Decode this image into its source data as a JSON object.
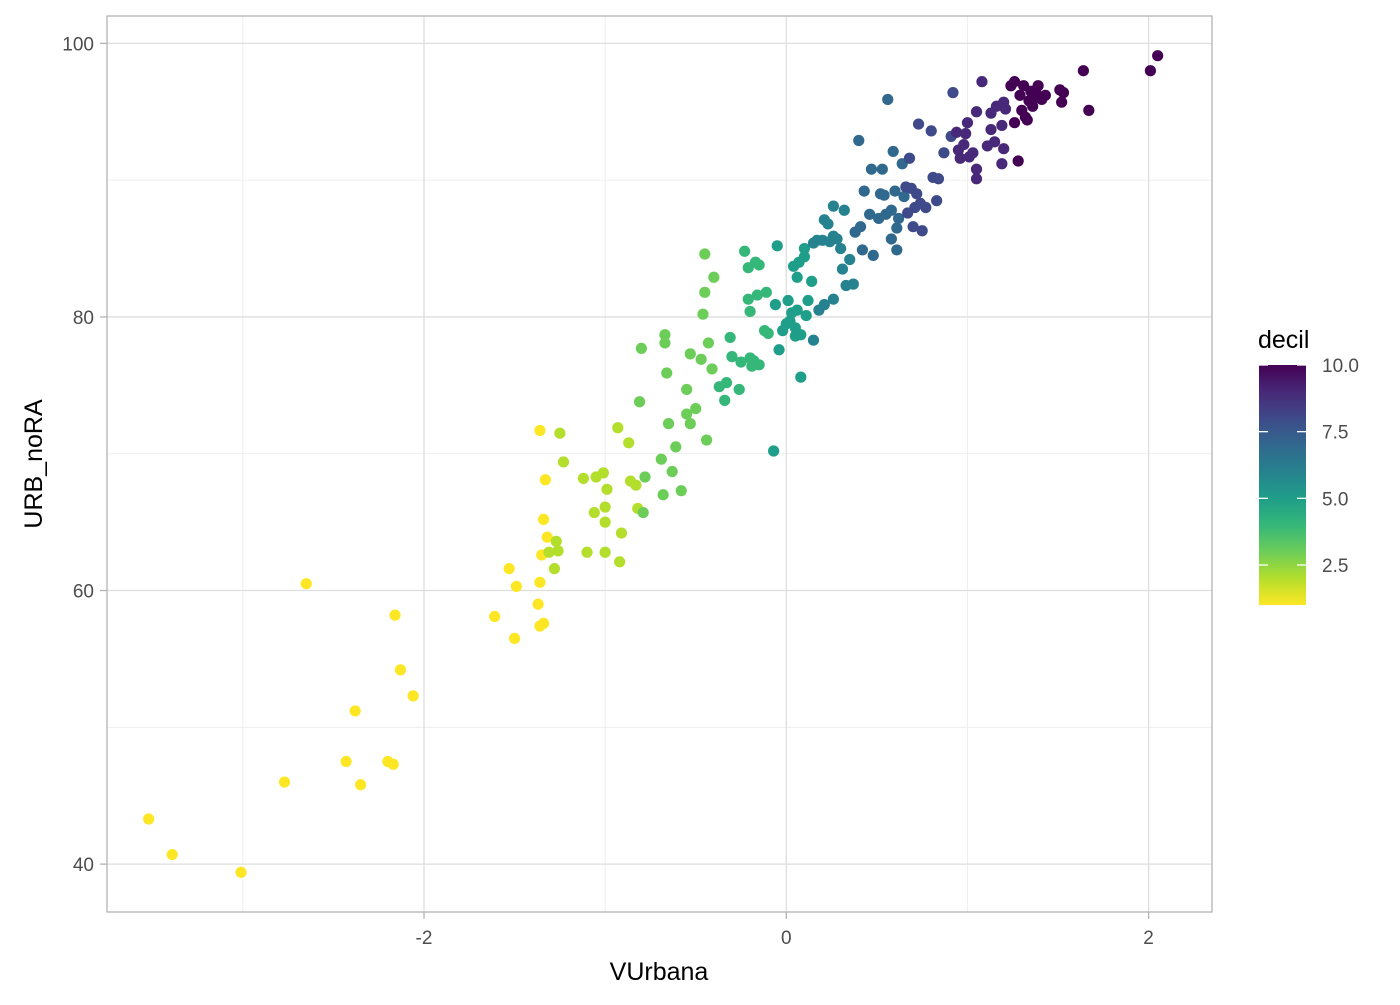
{
  "chart_data": {
    "type": "scatter",
    "xlabel": "VUrbana",
    "ylabel": "URB_noRA",
    "xlim": [
      -3.75,
      2.35
    ],
    "ylim": [
      36.5,
      102.0
    ],
    "x_ticks": [
      -2,
      0,
      2
    ],
    "x_tick_labels": [
      "-2",
      "0",
      "2"
    ],
    "x_minor_ticks": [
      -3,
      -1,
      1
    ],
    "y_ticks": [
      40,
      60,
      80,
      100
    ],
    "y_tick_labels": [
      "40",
      "60",
      "80",
      "100"
    ],
    "y_minor_ticks": [
      50,
      70,
      90
    ],
    "grid": true,
    "legend": {
      "title": "decil",
      "type": "colorbar",
      "placement": "right",
      "min": 1,
      "max": 10,
      "breaks": [
        10.0,
        7.5,
        5.0,
        2.5
      ],
      "break_labels": [
        "10.0",
        "7.5",
        "5.0",
        "2.5"
      ],
      "palette": [
        "#440154",
        "#482878",
        "#3E4A89",
        "#31688E",
        "#26828E",
        "#1F9E89",
        "#35B779",
        "#6DCD59",
        "#B4DE2C",
        "#FDE725"
      ]
    },
    "series": [
      {
        "columns": [
          "VUrbana",
          "URB_noRA",
          "decil"
        ],
        "points": [
          [
            -3.52,
            43.3,
            1
          ],
          [
            -3.39,
            40.7,
            1
          ],
          [
            -3.01,
            39.4,
            1
          ],
          [
            -2.77,
            46.0,
            1
          ],
          [
            -2.65,
            60.5,
            1
          ],
          [
            -2.43,
            47.5,
            1
          ],
          [
            -2.38,
            51.2,
            1
          ],
          [
            -2.35,
            45.8,
            1
          ],
          [
            -2.2,
            47.5,
            1
          ],
          [
            -2.17,
            47.3,
            1
          ],
          [
            -2.16,
            58.2,
            1
          ],
          [
            -2.13,
            54.2,
            1
          ],
          [
            -2.06,
            52.3,
            1
          ],
          [
            -1.61,
            58.1,
            1
          ],
          [
            -1.53,
            61.6,
            1
          ],
          [
            -1.49,
            60.3,
            1
          ],
          [
            -1.5,
            56.5,
            1
          ],
          [
            -1.37,
            59.0,
            1
          ],
          [
            -1.36,
            57.4,
            1
          ],
          [
            -1.34,
            57.6,
            1
          ],
          [
            -1.36,
            60.6,
            1
          ],
          [
            -1.35,
            62.6,
            1
          ],
          [
            -1.33,
            68.1,
            1
          ],
          [
            -1.32,
            63.9,
            1
          ],
          [
            -1.36,
            71.7,
            1
          ],
          [
            -1.34,
            65.2,
            1
          ],
          [
            -1.31,
            62.8,
            2
          ],
          [
            -1.27,
            63.6,
            2
          ],
          [
            -1.26,
            62.9,
            2
          ],
          [
            -1.25,
            71.5,
            2
          ],
          [
            -1.23,
            69.4,
            2
          ],
          [
            -1.28,
            61.6,
            2
          ],
          [
            -1.1,
            62.8,
            2
          ],
          [
            -1.12,
            68.2,
            2
          ],
          [
            -1.06,
            65.7,
            2
          ],
          [
            -1.05,
            68.3,
            2
          ],
          [
            -1.01,
            68.6,
            2
          ],
          [
            -1.0,
            66.1,
            2
          ],
          [
            -1.0,
            65.0,
            2
          ],
          [
            -0.99,
            67.4,
            2
          ],
          [
            -1.0,
            62.8,
            2
          ],
          [
            -0.93,
            71.9,
            2
          ],
          [
            -0.91,
            64.2,
            2
          ],
          [
            -0.92,
            62.1,
            2
          ],
          [
            -0.87,
            70.8,
            2
          ],
          [
            -0.86,
            68.0,
            2
          ],
          [
            -0.83,
            67.7,
            2
          ],
          [
            -0.82,
            66.0,
            2
          ],
          [
            -0.78,
            68.3,
            3
          ],
          [
            -0.79,
            65.7,
            3
          ],
          [
            -0.81,
            73.8,
            3
          ],
          [
            -0.8,
            77.7,
            3
          ],
          [
            -0.69,
            69.6,
            3
          ],
          [
            -0.68,
            67.0,
            3
          ],
          [
            -0.67,
            78.7,
            3
          ],
          [
            -0.67,
            78.1,
            3
          ],
          [
            -0.66,
            75.9,
            3
          ],
          [
            -0.65,
            72.2,
            3
          ],
          [
            -0.63,
            68.7,
            3
          ],
          [
            -0.61,
            70.5,
            3
          ],
          [
            -0.58,
            67.3,
            3
          ],
          [
            -0.55,
            72.9,
            3
          ],
          [
            -0.55,
            74.7,
            3
          ],
          [
            -0.53,
            72.2,
            3
          ],
          [
            -0.53,
            77.3,
            3
          ],
          [
            -0.5,
            73.3,
            3
          ],
          [
            -0.47,
            76.9,
            3
          ],
          [
            -0.46,
            80.2,
            3
          ],
          [
            -0.44,
            71.0,
            3
          ],
          [
            -0.45,
            81.8,
            3
          ],
          [
            -0.45,
            84.6,
            3
          ],
          [
            -0.43,
            78.1,
            3
          ],
          [
            -0.41,
            76.2,
            3
          ],
          [
            -0.4,
            82.9,
            3
          ],
          [
            -0.37,
            74.9,
            4
          ],
          [
            -0.34,
            73.9,
            4
          ],
          [
            -0.33,
            75.2,
            4
          ],
          [
            -0.31,
            78.5,
            4
          ],
          [
            -0.3,
            77.1,
            4
          ],
          [
            -0.26,
            74.7,
            4
          ],
          [
            -0.25,
            76.7,
            4
          ],
          [
            -0.23,
            84.8,
            4
          ],
          [
            -0.21,
            83.6,
            4
          ],
          [
            -0.21,
            81.3,
            4
          ],
          [
            -0.2,
            80.4,
            4
          ],
          [
            -0.2,
            77.0,
            4
          ],
          [
            -0.19,
            76.4,
            4
          ],
          [
            -0.18,
            76.8,
            4
          ],
          [
            -0.17,
            84.0,
            4
          ],
          [
            -0.16,
            81.6,
            4
          ],
          [
            -0.15,
            83.8,
            4
          ],
          [
            -0.15,
            76.5,
            4
          ],
          [
            -0.12,
            79.0,
            4
          ],
          [
            -0.11,
            81.8,
            4
          ],
          [
            -0.1,
            78.8,
            4
          ],
          [
            -0.07,
            70.2,
            5
          ],
          [
            -0.06,
            80.9,
            5
          ],
          [
            -0.05,
            85.2,
            5
          ],
          [
            -0.04,
            77.6,
            5
          ],
          [
            -0.02,
            79.0,
            5
          ],
          [
            0.0,
            79.5,
            5
          ],
          [
            0.01,
            81.2,
            5
          ],
          [
            0.02,
            79.7,
            5
          ],
          [
            0.03,
            80.3,
            5
          ],
          [
            0.04,
            83.7,
            5
          ],
          [
            0.05,
            79.2,
            5
          ],
          [
            0.05,
            78.6,
            5
          ],
          [
            0.06,
            80.5,
            5
          ],
          [
            0.06,
            82.9,
            5
          ],
          [
            0.07,
            84.0,
            5
          ],
          [
            0.08,
            75.6,
            5
          ],
          [
            0.08,
            78.7,
            5
          ],
          [
            0.1,
            84.4,
            5
          ],
          [
            0.1,
            85.0,
            5
          ],
          [
            0.11,
            80.1,
            5
          ],
          [
            0.12,
            81.2,
            5
          ],
          [
            0.14,
            82.6,
            5
          ],
          [
            0.15,
            85.4,
            6
          ],
          [
            0.15,
            78.3,
            6
          ],
          [
            0.17,
            85.6,
            6
          ],
          [
            0.18,
            80.5,
            6
          ],
          [
            0.2,
            85.6,
            6
          ],
          [
            0.21,
            80.9,
            6
          ],
          [
            0.21,
            87.1,
            6
          ],
          [
            0.23,
            86.8,
            6
          ],
          [
            0.24,
            85.5,
            6
          ],
          [
            0.26,
            81.3,
            6
          ],
          [
            0.26,
            85.9,
            6
          ],
          [
            0.26,
            88.1,
            6
          ],
          [
            0.28,
            85.7,
            6
          ],
          [
            0.3,
            85.0,
            6
          ],
          [
            0.31,
            83.5,
            6
          ],
          [
            0.32,
            87.8,
            6
          ],
          [
            0.33,
            82.3,
            6
          ],
          [
            0.35,
            84.2,
            6
          ],
          [
            0.37,
            82.4,
            6
          ],
          [
            0.38,
            86.2,
            7
          ],
          [
            0.4,
            92.9,
            7
          ],
          [
            0.41,
            86.6,
            7
          ],
          [
            0.42,
            84.9,
            7
          ],
          [
            0.43,
            89.2,
            7
          ],
          [
            0.46,
            87.5,
            7
          ],
          [
            0.47,
            90.8,
            7
          ],
          [
            0.48,
            84.5,
            7
          ],
          [
            0.51,
            87.2,
            7
          ],
          [
            0.52,
            89.0,
            7
          ],
          [
            0.53,
            90.8,
            7
          ],
          [
            0.54,
            88.9,
            7
          ],
          [
            0.55,
            87.5,
            7
          ],
          [
            0.56,
            95.9,
            7
          ],
          [
            0.58,
            85.7,
            7
          ],
          [
            0.58,
            87.8,
            7
          ],
          [
            0.59,
            92.1,
            7
          ],
          [
            0.6,
            89.2,
            7
          ],
          [
            0.61,
            86.5,
            7
          ],
          [
            0.61,
            84.9,
            7
          ],
          [
            0.62,
            87.2,
            7
          ],
          [
            0.64,
            91.2,
            7
          ],
          [
            0.65,
            88.8,
            7
          ],
          [
            0.66,
            89.5,
            8
          ],
          [
            0.67,
            87.6,
            8
          ],
          [
            0.68,
            91.6,
            8
          ],
          [
            0.69,
            89.4,
            8
          ],
          [
            0.7,
            86.6,
            8
          ],
          [
            0.71,
            88.0,
            8
          ],
          [
            0.72,
            89.0,
            8
          ],
          [
            0.73,
            94.1,
            8
          ],
          [
            0.74,
            88.3,
            8
          ],
          [
            0.75,
            86.3,
            8
          ],
          [
            0.77,
            88.0,
            8
          ],
          [
            0.8,
            93.6,
            8
          ],
          [
            0.81,
            90.2,
            8
          ],
          [
            0.83,
            88.5,
            8
          ],
          [
            0.84,
            90.1,
            8
          ],
          [
            0.87,
            92.0,
            8
          ],
          [
            0.92,
            96.4,
            8
          ],
          [
            0.91,
            93.2,
            8
          ],
          [
            0.94,
            93.5,
            9
          ],
          [
            0.95,
            92.2,
            9
          ],
          [
            0.96,
            91.6,
            9
          ],
          [
            0.98,
            92.6,
            9
          ],
          [
            0.99,
            93.4,
            9
          ],
          [
            1.0,
            94.2,
            9
          ],
          [
            1.01,
            91.7,
            9
          ],
          [
            1.03,
            92.0,
            9
          ],
          [
            1.05,
            95.0,
            9
          ],
          [
            1.05,
            90.8,
            9
          ],
          [
            1.05,
            90.1,
            9
          ],
          [
            1.08,
            97.2,
            9
          ],
          [
            1.11,
            92.5,
            9
          ],
          [
            1.13,
            94.9,
            9
          ],
          [
            1.13,
            93.7,
            9
          ],
          [
            1.15,
            92.8,
            9
          ],
          [
            1.16,
            95.4,
            9
          ],
          [
            1.19,
            94.0,
            9
          ],
          [
            1.19,
            91.2,
            9
          ],
          [
            1.2,
            95.7,
            9
          ],
          [
            1.2,
            92.3,
            9
          ],
          [
            1.21,
            95.2,
            9
          ],
          [
            1.24,
            96.9,
            10
          ],
          [
            1.26,
            97.2,
            10
          ],
          [
            1.26,
            94.2,
            10
          ],
          [
            1.28,
            91.4,
            10
          ],
          [
            1.29,
            96.2,
            10
          ],
          [
            1.3,
            95.1,
            10
          ],
          [
            1.31,
            96.9,
            10
          ],
          [
            1.32,
            94.6,
            10
          ],
          [
            1.33,
            94.4,
            10
          ],
          [
            1.34,
            95.8,
            10
          ],
          [
            1.35,
            96.5,
            10
          ],
          [
            1.36,
            95.4,
            10
          ],
          [
            1.37,
            96.0,
            10
          ],
          [
            1.38,
            96.3,
            10
          ],
          [
            1.39,
            96.9,
            10
          ],
          [
            1.41,
            95.9,
            10
          ],
          [
            1.43,
            96.2,
            10
          ],
          [
            1.51,
            96.6,
            10
          ],
          [
            1.52,
            95.7,
            10
          ],
          [
            1.53,
            96.4,
            10
          ],
          [
            1.64,
            98.0,
            10
          ],
          [
            1.67,
            95.1,
            10
          ],
          [
            2.01,
            98.0,
            10
          ],
          [
            2.05,
            99.1,
            10
          ]
        ]
      }
    ]
  }
}
